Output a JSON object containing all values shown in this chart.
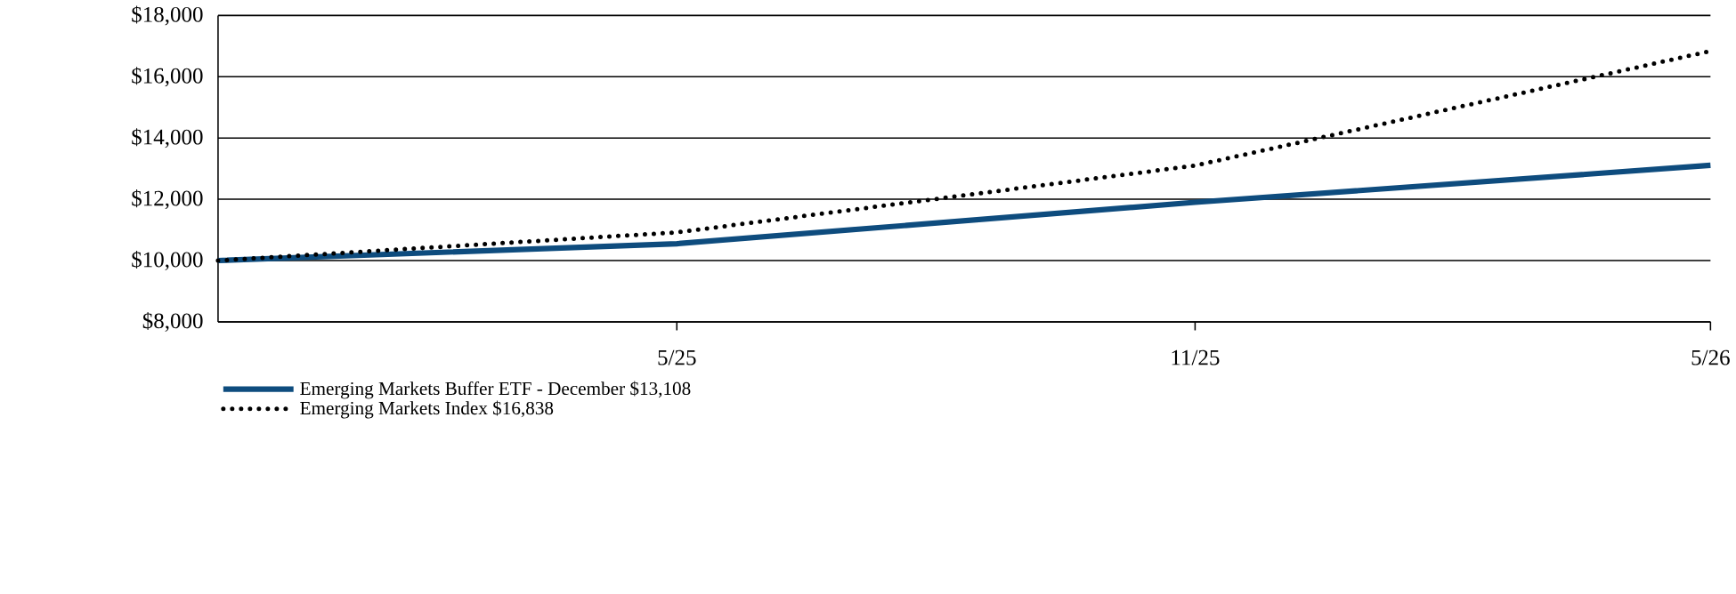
{
  "chart_data": {
    "type": "line",
    "x": [
      "2024-12-20",
      "2025-05-31",
      "2025-11-30",
      "2026-05-31"
    ],
    "series": [
      {
        "name": "Emerging Markets Buffer ETF - December $13,108",
        "color": "#0e4c7e",
        "values": [
          10000,
          10550,
          11900,
          13108
        ],
        "line_style": "solid"
      },
      {
        "name": "Emerging Markets Index $16,838",
        "color": "#000000",
        "values": [
          10000,
          10920,
          13100,
          16838
        ],
        "line_style": "dotted"
      }
    ],
    "xlim": [
      "2024-12-20",
      "2026-05-31"
    ],
    "xticks": [
      {
        "value": "2025-05-31",
        "label": "5/25"
      },
      {
        "value": "2025-11-30",
        "label": "11/25"
      },
      {
        "value": "2026-05-31",
        "label": "5/26"
      }
    ],
    "ylim": [
      8000,
      18000
    ],
    "yticks": [
      {
        "value": 8000,
        "label": "$8,000"
      },
      {
        "value": 10000,
        "label": "$10,000"
      },
      {
        "value": 12000,
        "label": "$12,000"
      },
      {
        "value": 14000,
        "label": "$14,000"
      },
      {
        "value": 16000,
        "label": "$16,000"
      },
      {
        "value": 18000,
        "label": "$18,000"
      }
    ],
    "grid": "y",
    "legend": "bottom left",
    "marker": "none"
  }
}
